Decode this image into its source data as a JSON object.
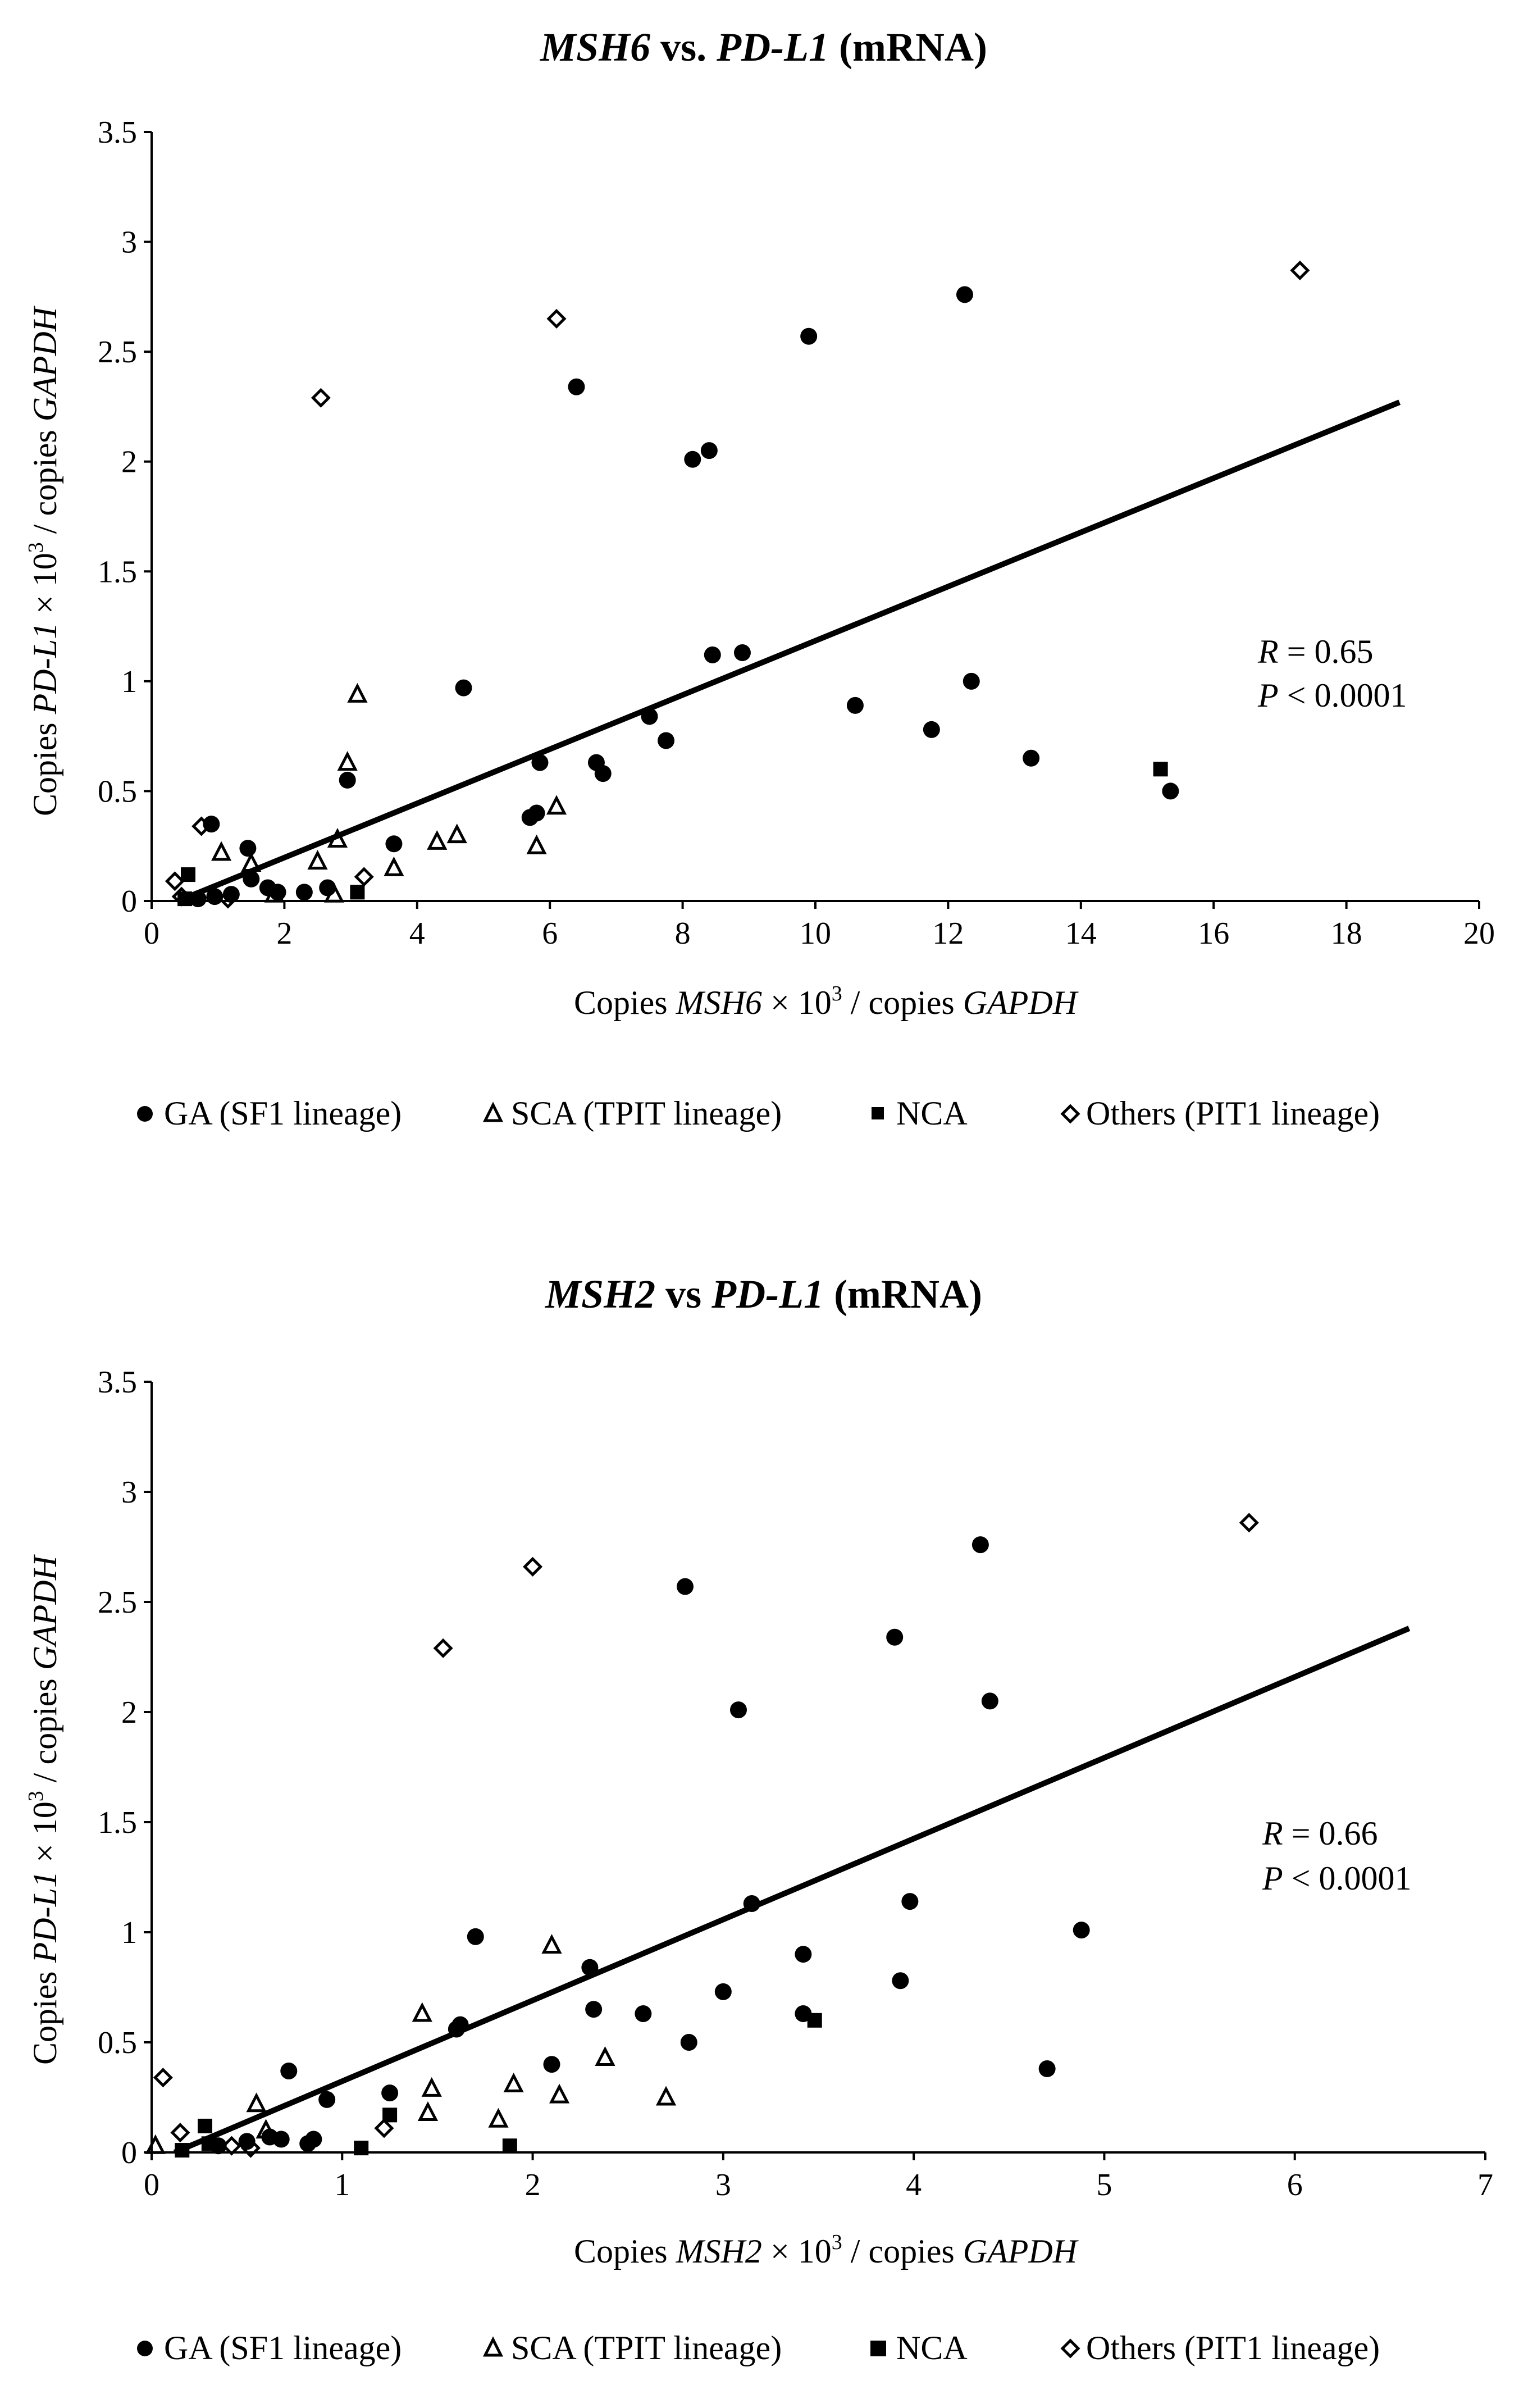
{
  "legend": {
    "items": [
      {
        "key": "GA",
        "label": "GA (SF1 lineage)"
      },
      {
        "key": "SCA",
        "label": "SCA (TPIT lineage)"
      },
      {
        "key": "NCA",
        "label": "NCA"
      },
      {
        "key": "Others",
        "label": "Others (PIT1 lineage)"
      }
    ]
  },
  "chart_data": [
    {
      "type": "scatter",
      "title": {
        "gene_x": "MSH6",
        "sep": " vs. ",
        "gene_y": "PD-L1",
        "suffix": " (mRNA)"
      },
      "xlabel": {
        "pre": "Copies ",
        "gene": "MSH6",
        "mid": " × 10",
        "exp": "3",
        "post": " / copies ",
        "norm": "GAPDH"
      },
      "ylabel": {
        "pre": "Copies ",
        "gene": "PD-L1",
        "mid": " × 10",
        "exp": "3",
        "post": " / copies ",
        "norm": "GAPDH"
      },
      "xlim": [
        0,
        20
      ],
      "ylim": [
        0,
        3.5
      ],
      "xticks": [
        0,
        2,
        4,
        6,
        8,
        10,
        12,
        14,
        16,
        18,
        20
      ],
      "yticks": [
        0,
        0.5,
        1,
        1.5,
        2,
        2.5,
        3,
        3.5
      ],
      "stats": {
        "r_label": "R",
        "r_value": " = 0.65",
        "p_label": "P",
        "p_value": " < 0.0001"
      },
      "trendline": {
        "x": [
          0.4,
          18.8
        ],
        "y": [
          0.0,
          2.27
        ]
      },
      "series": [
        {
          "key": "GA",
          "name": "GA (SF1 lineage)",
          "points": [
            [
              0.9,
              0.35
            ],
            [
              1.45,
              0.24
            ],
            [
              1.5,
              0.1
            ],
            [
              1.2,
              0.03
            ],
            [
              1.75,
              0.06
            ],
            [
              1.9,
              0.04
            ],
            [
              2.3,
              0.04
            ],
            [
              2.65,
              0.06
            ],
            [
              2.95,
              0.55
            ],
            [
              3.65,
              0.26
            ],
            [
              4.7,
              0.97
            ],
            [
              5.7,
              0.38
            ],
            [
              5.8,
              0.4
            ],
            [
              5.85,
              0.63
            ],
            [
              6.4,
              2.34
            ],
            [
              6.7,
              0.63
            ],
            [
              6.8,
              0.58
            ],
            [
              7.5,
              0.84
            ],
            [
              7.75,
              0.73
            ],
            [
              8.15,
              2.01
            ],
            [
              8.4,
              2.05
            ],
            [
              8.45,
              1.12
            ],
            [
              8.9,
              1.13
            ],
            [
              9.9,
              2.57
            ],
            [
              10.6,
              0.89
            ],
            [
              11.75,
              0.78
            ],
            [
              12.25,
              2.76
            ],
            [
              12.35,
              1.0
            ],
            [
              13.25,
              0.65
            ],
            [
              15.35,
              0.5
            ],
            [
              0.7,
              0.01
            ],
            [
              0.95,
              0.02
            ]
          ]
        },
        {
          "key": "SCA",
          "name": "SCA (TPIT lineage)",
          "points": [
            [
              1.05,
              0.22
            ],
            [
              1.5,
              0.17
            ],
            [
              1.85,
              0.03
            ],
            [
              2.5,
              0.18
            ],
            [
              2.8,
              0.28
            ],
            [
              2.95,
              0.63
            ],
            [
              3.1,
              0.94
            ],
            [
              3.65,
              0.15
            ],
            [
              4.3,
              0.27
            ],
            [
              4.6,
              0.3
            ],
            [
              5.8,
              0.25
            ],
            [
              6.1,
              0.43
            ],
            [
              2.75,
              0.03
            ]
          ]
        },
        {
          "key": "NCA",
          "name": "NCA",
          "points": [
            [
              0.55,
              0.12
            ],
            [
              0.5,
              0.01
            ],
            [
              3.1,
              0.04
            ],
            [
              15.2,
              0.6
            ]
          ]
        },
        {
          "key": "Others",
          "name": "Others (PIT1 lineage)",
          "points": [
            [
              0.35,
              0.09
            ],
            [
              0.75,
              0.34
            ],
            [
              2.55,
              2.29
            ],
            [
              3.2,
              0.11
            ],
            [
              6.1,
              2.65
            ],
            [
              17.3,
              2.87
            ],
            [
              0.45,
              0.02
            ],
            [
              1.15,
              0.01
            ]
          ]
        }
      ]
    },
    {
      "type": "scatter",
      "title": {
        "gene_x": "MSH2",
        "sep": " vs ",
        "gene_y": "PD-L1",
        "suffix": " (mRNA)"
      },
      "xlabel": {
        "pre": "Copies ",
        "gene": "MSH2",
        "mid": " × 10",
        "exp": "3",
        "post": " / copies ",
        "norm": "GAPDH"
      },
      "ylabel": {
        "pre": "Copies ",
        "gene": "PD-L1",
        "mid": " × 10",
        "exp": "3",
        "post": " / copies ",
        "norm": "GAPDH"
      },
      "xlim": [
        0,
        7
      ],
      "ylim": [
        0,
        3.5
      ],
      "xticks": [
        0,
        1,
        2,
        3,
        4,
        5,
        6,
        7
      ],
      "yticks": [
        0,
        0.5,
        1,
        1.5,
        2,
        2.5,
        3,
        3.5
      ],
      "stats": {
        "r_label": "R",
        "r_value": " = 0.66",
        "p_label": "P",
        "p_value": " < 0.0001"
      },
      "trendline": {
        "x": [
          0.12,
          6.6
        ],
        "y": [
          0.0,
          2.38
        ]
      },
      "series": [
        {
          "key": "GA",
          "name": "GA (SF1 lineage)",
          "points": [
            [
              0.35,
              0.03
            ],
            [
              0.5,
              0.05
            ],
            [
              0.62,
              0.07
            ],
            [
              0.68,
              0.06
            ],
            [
              0.72,
              0.37
            ],
            [
              0.82,
              0.04
            ],
            [
              0.85,
              0.06
            ],
            [
              0.92,
              0.24
            ],
            [
              1.25,
              0.27
            ],
            [
              1.6,
              0.56
            ],
            [
              1.62,
              0.58
            ],
            [
              1.7,
              0.98
            ],
            [
              2.1,
              0.4
            ],
            [
              2.3,
              0.84
            ],
            [
              2.32,
              0.65
            ],
            [
              2.58,
              0.63
            ],
            [
              2.8,
              2.57
            ],
            [
              2.82,
              0.5
            ],
            [
              3.0,
              0.73
            ],
            [
              3.08,
              2.01
            ],
            [
              3.15,
              1.13
            ],
            [
              3.42,
              0.9
            ],
            [
              3.42,
              0.63
            ],
            [
              3.9,
              2.34
            ],
            [
              3.93,
              0.78
            ],
            [
              3.98,
              1.14
            ],
            [
              4.35,
              2.76
            ],
            [
              4.4,
              2.05
            ],
            [
              4.7,
              0.38
            ],
            [
              4.88,
              1.01
            ]
          ]
        },
        {
          "key": "SCA",
          "name": "SCA (TPIT lineage)",
          "points": [
            [
              0.02,
              0.03
            ],
            [
              0.55,
              0.22
            ],
            [
              1.42,
              0.63
            ],
            [
              1.45,
              0.18
            ],
            [
              1.47,
              0.29
            ],
            [
              1.82,
              0.15
            ],
            [
              1.9,
              0.31
            ],
            [
              2.1,
              0.94
            ],
            [
              2.14,
              0.26
            ],
            [
              2.38,
              0.43
            ],
            [
              2.7,
              0.25
            ],
            [
              0.6,
              0.1
            ]
          ]
        },
        {
          "key": "NCA",
          "name": "NCA",
          "points": [
            [
              0.16,
              0.01
            ],
            [
              0.28,
              0.12
            ],
            [
              0.3,
              0.04
            ],
            [
              1.1,
              0.02
            ],
            [
              1.25,
              0.17
            ],
            [
              1.88,
              0.03
            ],
            [
              3.48,
              0.6
            ]
          ]
        },
        {
          "key": "Others",
          "name": "Others (PIT1 lineage)",
          "points": [
            [
              0.06,
              0.34
            ],
            [
              0.15,
              0.09
            ],
            [
              0.52,
              0.02
            ],
            [
              1.22,
              0.11
            ],
            [
              1.53,
              2.29
            ],
            [
              2.0,
              2.66
            ],
            [
              5.76,
              2.86
            ],
            [
              0.42,
              0.03
            ]
          ]
        }
      ]
    }
  ]
}
